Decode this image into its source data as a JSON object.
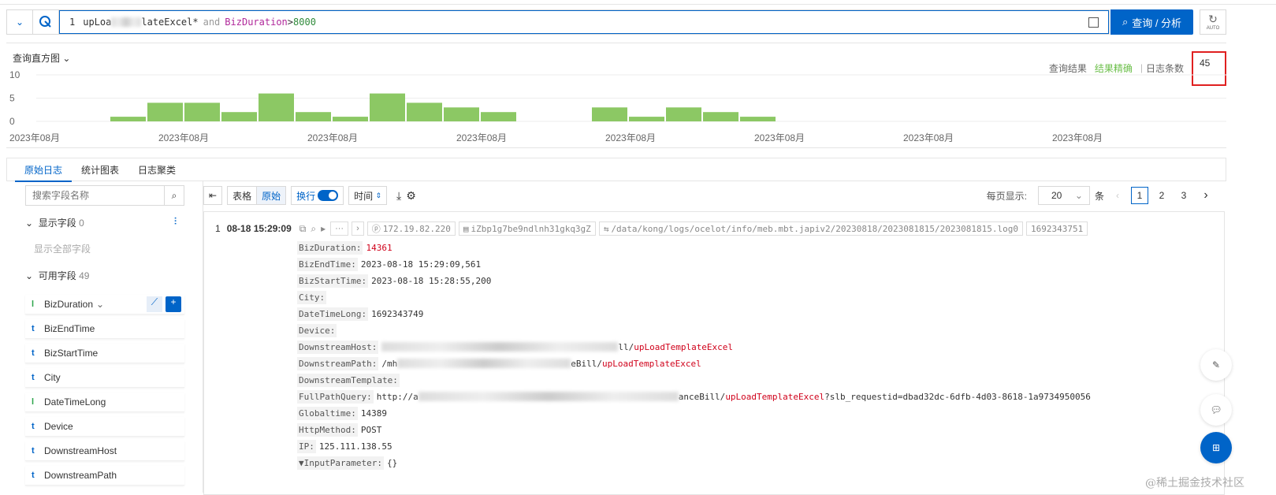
{
  "query": {
    "line_no": "1",
    "text_prefix": "upLoa",
    "text_suffix": "lateExcel*",
    "op": "and",
    "field": "BizDuration",
    ">": ">",
    "value": "8000",
    "submit_label": "查询 / 分析",
    "auto_label": "AUTO"
  },
  "histogram": {
    "title": "查询直方图",
    "result_label": "查询结果",
    "accuracy": "结果精确",
    "count_label": "日志条数",
    "count": "45"
  },
  "chart_data": {
    "type": "bar",
    "ylim": [
      0,
      10
    ],
    "yticks": [
      "10",
      "5",
      "0"
    ],
    "xtick_labels": [
      "2023年08月",
      "2023年08月",
      "2023年08月",
      "2023年08月",
      "2023年08月",
      "2023年08月",
      "2023年08月",
      "2023年08月"
    ],
    "values": [
      0,
      1,
      4,
      4,
      2,
      6,
      2,
      1,
      6,
      4,
      3,
      2,
      0,
      0,
      3,
      1,
      3,
      2,
      1
    ],
    "bar_color": "#8cc864",
    "grid": true
  },
  "tabs": [
    {
      "label": "原始日志",
      "active": true
    },
    {
      "label": "统计图表"
    },
    {
      "label": "日志聚类"
    }
  ],
  "sidebar": {
    "search_placeholder": "搜索字段名称",
    "shown_label": "显示字段",
    "shown_count": "0",
    "show_all": "显示全部字段",
    "available_label": "可用字段",
    "available_count": "49",
    "fields": [
      {
        "type": "l",
        "name": "BizDuration"
      },
      {
        "type": "t",
        "name": "BizEndTime"
      },
      {
        "type": "t",
        "name": "BizStartTime"
      },
      {
        "type": "t",
        "name": "City"
      },
      {
        "type": "l",
        "name": "DateTimeLong"
      },
      {
        "type": "t",
        "name": "Device"
      },
      {
        "type": "t",
        "name": "DownstreamHost"
      },
      {
        "type": "t",
        "name": "DownstreamPath"
      }
    ]
  },
  "toolbar": {
    "table": "表格",
    "raw": "原始",
    "wrap": "换行",
    "time": "时间",
    "per_page": "每页显示:",
    "page_size": "20",
    "unit": "条",
    "pages": [
      "1",
      "2",
      "3"
    ]
  },
  "log": {
    "index": "1",
    "time": "08-18 15:29:09",
    "ip": "172.19.82.220",
    "host": "iZbp1g7be9ndlnh31gkq3gZ",
    "path": "/data/kong/logs/ocelot/info/meb.mbt.japiv2/20230818/2023081815/2023081815.log0",
    "ts": "1692343751",
    "fields": [
      {
        "k": "BizDuration:",
        "v": "",
        "r": "14361"
      },
      {
        "k": "BizEndTime:",
        "v": "2023-08-18 15:29:09,561"
      },
      {
        "k": "BizStartTime:",
        "v": "2023-08-18 15:28:55,200"
      },
      {
        "k": "City:",
        "v": ""
      },
      {
        "k": "DateTimeLong:",
        "v": "1692343749"
      },
      {
        "k": "Device:",
        "v": ""
      },
      {
        "k": "DownstreamHost:",
        "v": "",
        "blur": 300,
        "v2": "ll/",
        "r": "upLoadTemplateExcel"
      },
      {
        "k": "DownstreamPath:",
        "v": "/mh",
        "blur": 220,
        "v2": "eBill/",
        "r": "upLoadTemplateExcel"
      },
      {
        "k": "DownstreamTemplate:",
        "v": ""
      },
      {
        "k": "FullPathQuery:",
        "v": "http://a",
        "blur": 330,
        "v2": "anceBill/",
        "r": "upLoadTemplateExcel",
        "v3": "?slb_requestid=dbad32dc-6dfb-4d03-8618-1a9734950056"
      },
      {
        "k": "Globaltime:",
        "v": "14389"
      },
      {
        "k": "HttpMethod:",
        "v": "POST"
      },
      {
        "k": "IP:",
        "v": "125.111.138.55"
      },
      {
        "k": "▼InputParameter:",
        "v": "{}"
      }
    ]
  },
  "watermark": "@稀土掘金技术社区"
}
